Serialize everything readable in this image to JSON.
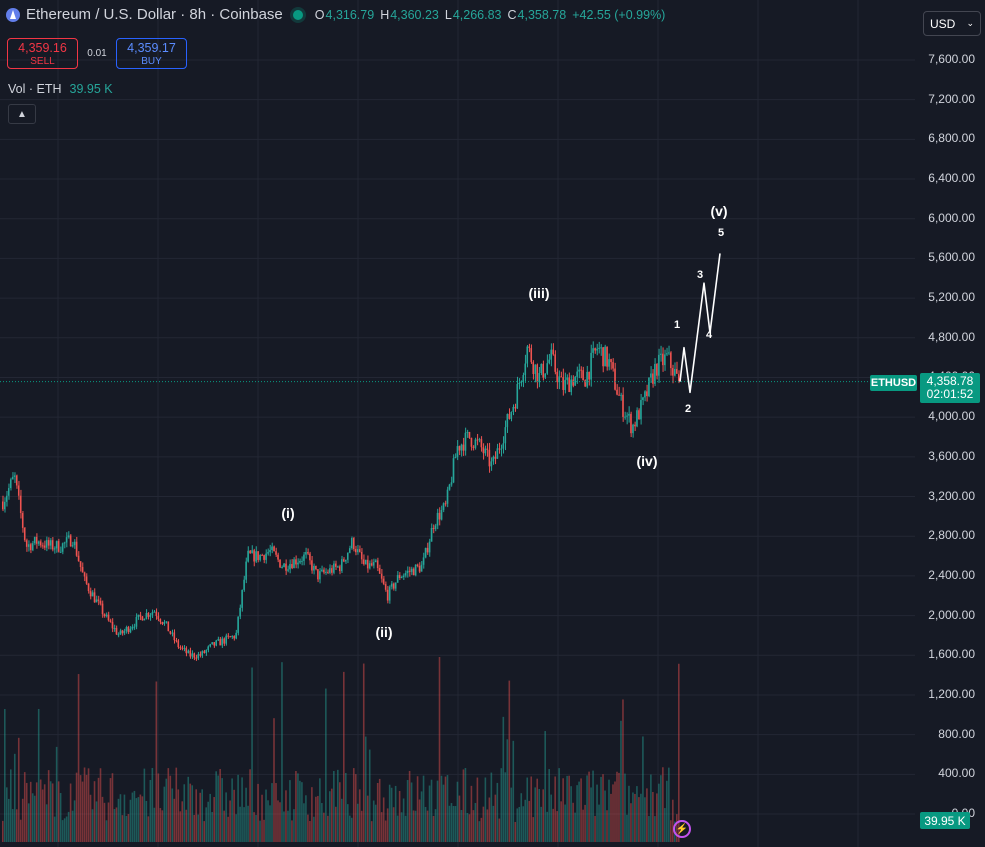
{
  "header": {
    "title": "Ethereum / U.S. Dollar · 8h · Coinbase",
    "ohlc": {
      "o_label": "O",
      "o": "4,316.79",
      "h_label": "H",
      "h": "4,360.23",
      "l_label": "L",
      "l": "4,266.83",
      "c_label": "C",
      "c": "4,358.78",
      "change": "+42.55 (+0.99%)"
    }
  },
  "trade": {
    "sell_price": "4,359.16",
    "sell_label": "SELL",
    "spread": "0.01",
    "buy_price": "4,359.17",
    "buy_label": "BUY"
  },
  "volume": {
    "label": "Vol · ETH",
    "value": "39.95 K",
    "tag": "39.95 K"
  },
  "currency": {
    "label": "USD"
  },
  "price_scale": [
    "7,600.00",
    "7,200.00",
    "6,800.00",
    "6,400.00",
    "6,000.00",
    "5,600.00",
    "5,200.00",
    "4,800.00",
    "4,400.00",
    "4,000.00",
    "3,600.00",
    "3,200.00",
    "2,800.00",
    "2,400.00",
    "2,000.00",
    "1,600.00",
    "1,200.00",
    "800.00",
    "400.00",
    "0.00"
  ],
  "last_price": {
    "symbol": "ETHUSD",
    "price": "4,358.78",
    "countdown": "02:01:52"
  },
  "waves": {
    "major": [
      "(i)",
      "(ii)",
      "(iii)",
      "(iv)",
      "(v)"
    ],
    "minor": [
      "1",
      "2",
      "3",
      "4",
      "5"
    ]
  },
  "colors": {
    "up": "#26a69a",
    "down": "#ef5350",
    "background": "#161a25",
    "grid": "#232734"
  },
  "icons": {
    "logo": "ethereum-logo-icon",
    "collapse": "chevron-up-icon",
    "currency": "chevron-down-icon",
    "replay": "replay-icon"
  },
  "chart_data": {
    "type": "candlestick",
    "symbol": "ETHUSD",
    "interval": "8h",
    "ylim": [
      0,
      7800
    ],
    "close_path": [
      3150,
      3400,
      2700,
      2750,
      2700,
      2700,
      2780,
      2350,
      2150,
      1950,
      1800,
      1900,
      2000,
      2050,
      1900,
      1700,
      1600,
      1600,
      1700,
      1750,
      1800,
      2600,
      2600,
      2650,
      2500,
      2550,
      2600,
      2400,
      2450,
      2500,
      2750,
      2500,
      2500,
      2200,
      2400,
      2450,
      2500,
      2950,
      3100,
      3700,
      3800,
      3700,
      3500,
      3850,
      4200,
      4700,
      4400,
      4600,
      4300,
      4400,
      4400,
      4700,
      4550,
      4150,
      3900,
      4150,
      4500,
      4600,
      4358
    ],
    "last": 4358.78,
    "projection": [
      4358,
      4700,
      4250,
      5350,
      4850,
      5650
    ],
    "volume_last": "39.95 K"
  }
}
